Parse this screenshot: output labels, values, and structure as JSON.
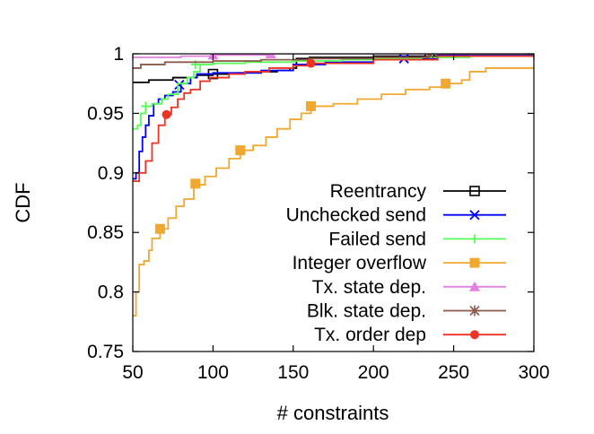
{
  "chart_data": {
    "type": "line",
    "title": "",
    "xlabel": "# constraints",
    "ylabel": "CDF",
    "xlim": [
      50,
      300
    ],
    "ylim": [
      0.75,
      1.0
    ],
    "xticks": [
      {
        "value": 50,
        "label": "50"
      },
      {
        "value": 100,
        "label": "100"
      },
      {
        "value": 150,
        "label": "150"
      },
      {
        "value": 200,
        "label": "200"
      },
      {
        "value": 250,
        "label": "250"
      },
      {
        "value": 300,
        "label": "300"
      }
    ],
    "yticks": [
      {
        "value": 0.75,
        "label": "0.75"
      },
      {
        "value": 0.8,
        "label": "0.8"
      },
      {
        "value": 0.85,
        "label": "0.85"
      },
      {
        "value": 0.9,
        "label": "0.9"
      },
      {
        "value": 0.95,
        "label": "0.95"
      },
      {
        "value": 1.0,
        "label": "1"
      }
    ],
    "grid": false,
    "legend_position": "bottom-right",
    "series": [
      {
        "name": "Reentrancy",
        "color": "#000000",
        "marker": "open-square",
        "points": [
          [
            50,
            0.976
          ],
          [
            60,
            0.978
          ],
          [
            75,
            0.98
          ],
          [
            90,
            0.982
          ],
          [
            100,
            0.983
          ],
          [
            115,
            0.984
          ],
          [
            130,
            0.985
          ],
          [
            140,
            0.986
          ],
          [
            148,
            0.988
          ],
          [
            152,
            0.996
          ],
          [
            160,
            0.997
          ],
          [
            200,
            0.998
          ],
          [
            240,
            0.999
          ],
          [
            300,
            1.0
          ]
        ],
        "markers": [
          [
            100,
            0.983
          ],
          [
            235,
            0.999
          ]
        ]
      },
      {
        "name": "Unchecked send",
        "color": "#0000ff",
        "marker": "x",
        "points": [
          [
            50,
            0.895
          ],
          [
            52,
            0.9
          ],
          [
            54,
            0.918
          ],
          [
            56,
            0.93
          ],
          [
            58,
            0.94
          ],
          [
            60,
            0.948
          ],
          [
            63,
            0.958
          ],
          [
            66,
            0.962
          ],
          [
            70,
            0.965
          ],
          [
            75,
            0.968
          ],
          [
            80,
            0.975
          ],
          [
            86,
            0.98
          ],
          [
            90,
            0.983
          ],
          [
            100,
            0.984
          ],
          [
            130,
            0.986
          ],
          [
            150,
            0.991
          ],
          [
            170,
            0.993
          ],
          [
            200,
            0.995
          ],
          [
            219,
            0.996
          ],
          [
            240,
            0.999
          ],
          [
            300,
            1.0
          ]
        ],
        "markers": [
          [
            79,
            0.974
          ],
          [
            219,
            0.996
          ]
        ]
      },
      {
        "name": "Failed send",
        "color": "#55ff55",
        "marker": "plus",
        "points": [
          [
            50,
            0.937
          ],
          [
            53,
            0.94
          ],
          [
            55,
            0.95
          ],
          [
            58,
            0.956
          ],
          [
            62,
            0.958
          ],
          [
            68,
            0.962
          ],
          [
            72,
            0.966
          ],
          [
            78,
            0.975
          ],
          [
            84,
            0.98
          ],
          [
            88,
            0.985
          ],
          [
            92,
            0.991
          ],
          [
            100,
            0.992
          ],
          [
            120,
            0.993
          ],
          [
            150,
            0.994
          ],
          [
            180,
            0.995
          ],
          [
            200,
            0.996
          ],
          [
            230,
            0.997
          ],
          [
            260,
            0.998
          ],
          [
            300,
            1.0
          ]
        ],
        "markers": [
          [
            58,
            0.956
          ],
          [
            89,
            0.991
          ]
        ]
      },
      {
        "name": "Integer overflow",
        "color": "#f0a830",
        "marker": "filled-square",
        "points": [
          [
            50,
            0.78
          ],
          [
            52,
            0.8
          ],
          [
            54,
            0.823
          ],
          [
            57,
            0.826
          ],
          [
            60,
            0.835
          ],
          [
            62,
            0.845
          ],
          [
            67,
            0.853
          ],
          [
            72,
            0.862
          ],
          [
            77,
            0.872
          ],
          [
            82,
            0.878
          ],
          [
            88,
            0.89
          ],
          [
            95,
            0.897
          ],
          [
            102,
            0.904
          ],
          [
            110,
            0.912
          ],
          [
            117,
            0.919
          ],
          [
            125,
            0.923
          ],
          [
            133,
            0.93
          ],
          [
            140,
            0.937
          ],
          [
            148,
            0.945
          ],
          [
            155,
            0.95
          ],
          [
            161,
            0.956
          ],
          [
            175,
            0.958
          ],
          [
            190,
            0.962
          ],
          [
            205,
            0.966
          ],
          [
            220,
            0.97
          ],
          [
            235,
            0.972
          ],
          [
            245,
            0.975
          ],
          [
            255,
            0.978
          ],
          [
            260,
            0.985
          ],
          [
            270,
            0.988
          ],
          [
            300,
            0.99
          ]
        ],
        "markers": [
          [
            67,
            0.853
          ],
          [
            89,
            0.891
          ],
          [
            117,
            0.919
          ],
          [
            161,
            0.956
          ],
          [
            245,
            0.975
          ]
        ]
      },
      {
        "name": "Tx. state dep.",
        "color": "#e080e0",
        "marker": "triangle",
        "points": [
          [
            50,
            0.997
          ],
          [
            80,
            0.998
          ],
          [
            100,
            0.999
          ],
          [
            136,
            1.0
          ],
          [
            300,
            1.0
          ]
        ],
        "markers": [
          [
            100,
            0.999
          ],
          [
            136,
            1.0
          ]
        ]
      },
      {
        "name": "Blk. state dep.",
        "color": "#8b5a4a",
        "marker": "star",
        "points": [
          [
            50,
            0.988
          ],
          [
            55,
            0.991
          ],
          [
            70,
            0.993
          ],
          [
            100,
            0.994
          ],
          [
            130,
            0.995
          ],
          [
            160,
            0.996
          ],
          [
            200,
            0.997
          ],
          [
            235,
            1.0
          ],
          [
            300,
            1.0
          ]
        ],
        "markers": [
          [
            235,
            1.0
          ]
        ]
      },
      {
        "name": "Tx. order dep",
        "color": "#ee3322",
        "marker": "filled-circle",
        "points": [
          [
            50,
            0.893
          ],
          [
            54,
            0.9
          ],
          [
            58,
            0.91
          ],
          [
            62,
            0.925
          ],
          [
            66,
            0.94
          ],
          [
            70,
            0.949
          ],
          [
            74,
            0.955
          ],
          [
            78,
            0.962
          ],
          [
            82,
            0.967
          ],
          [
            86,
            0.97
          ],
          [
            92,
            0.977
          ],
          [
            98,
            0.98
          ],
          [
            110,
            0.983
          ],
          [
            120,
            0.985
          ],
          [
            135,
            0.988
          ],
          [
            150,
            0.99
          ],
          [
            161,
            0.992
          ],
          [
            200,
            0.995
          ],
          [
            240,
            0.998
          ],
          [
            300,
            1.0
          ]
        ],
        "markers": [
          [
            71,
            0.949
          ],
          [
            161,
            0.992
          ]
        ]
      }
    ]
  }
}
